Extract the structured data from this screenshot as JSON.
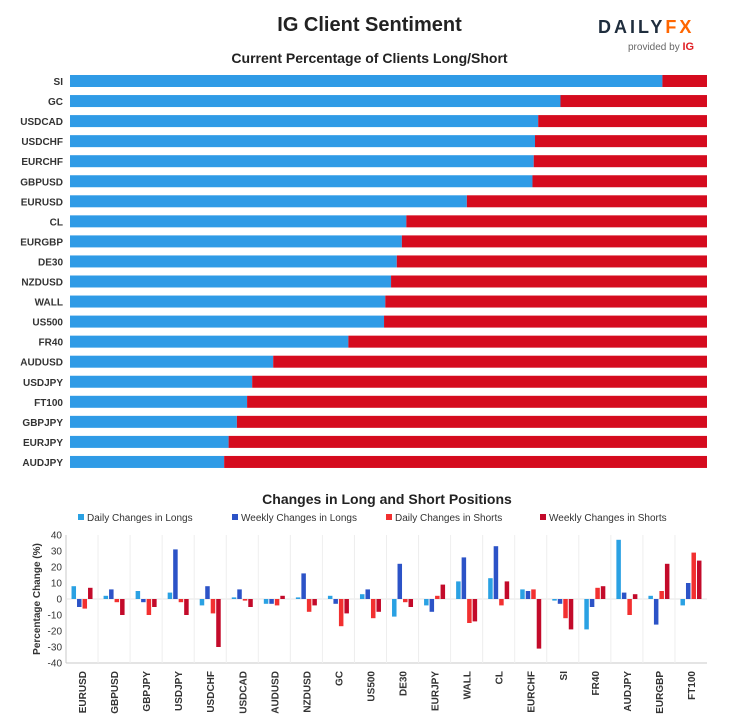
{
  "header": {
    "title": "IG Client Sentiment",
    "logo_primary": "DAILY",
    "logo_accent": "FX",
    "logo_caption": "provided by",
    "logo_badge": "IG"
  },
  "colors": {
    "long": "#2f9be6",
    "short": "#d50b1e",
    "daily_longs": "#2aa1e3",
    "weekly_longs": "#2c53c7",
    "daily_shorts": "#f23030",
    "weekly_shorts": "#c30a2a"
  },
  "chart_data": [
    {
      "type": "bar",
      "orientation": "horizontal",
      "stacked": true,
      "title": "Current Percentage of Clients Long/Short",
      "categories": [
        "SI",
        "GC",
        "USDCAD",
        "USDCHF",
        "EURCHF",
        "GBPUSD",
        "EURUSD",
        "CL",
        "EURGBP",
        "DE30",
        "NZDUSD",
        "WALL",
        "US500",
        "FR40",
        "AUDUSD",
        "USDJPY",
        "FT100",
        "GBPJPY",
        "EURJPY",
        "AUDJPY"
      ],
      "series": [
        {
          "values": [
            93.0,
            77.0,
            73.5,
            73.0,
            72.8,
            72.6,
            62.3,
            52.8,
            52.1,
            51.3,
            50.4,
            49.5,
            49.3,
            43.7,
            31.9,
            28.6,
            27.8,
            26.2,
            24.9,
            24.2
          ]
        },
        {
          "values": [
            7.0,
            23.0,
            26.5,
            27.0,
            27.2,
            27.4,
            37.7,
            47.2,
            47.9,
            48.7,
            49.6,
            50.5,
            50.7,
            56.3,
            68.1,
            71.4,
            72.2,
            73.8,
            75.1,
            75.8
          ]
        }
      ],
      "xlim": [
        0,
        100
      ]
    },
    {
      "type": "bar",
      "title": "Changes in Long and Short Positions",
      "ylabel": "Percentage Change (%)",
      "ylim": [
        -40,
        40
      ],
      "yticks": [
        40,
        30,
        20,
        10,
        0,
        -10,
        -20,
        -30,
        -40
      ],
      "grid": false,
      "legend_position": "top",
      "categories": [
        "EURUSD",
        "GBPUSD",
        "GBPJPY",
        "USDJPY",
        "USDCHF",
        "USDCAD",
        "AUDUSD",
        "NZDUSD",
        "GC",
        "US500",
        "DE30",
        "EURJPY",
        "WALL",
        "CL",
        "EURCHF",
        "SI",
        "FR40",
        "AUDJPY",
        "EURGBP",
        "FT100"
      ],
      "series": [
        {
          "name": "Daily Changes in Longs",
          "values": [
            8,
            2,
            5,
            4,
            -4,
            1,
            -3,
            1,
            2,
            3,
            -11,
            -4,
            11,
            13,
            6,
            -1,
            -19,
            37,
            2,
            -4
          ]
        },
        {
          "name": "Weekly Changes in Longs",
          "values": [
            -5,
            6,
            -2,
            31,
            8,
            6,
            -3,
            16,
            -3,
            6,
            22,
            -8,
            26,
            33,
            5,
            -3,
            -5,
            4,
            -16,
            10
          ]
        },
        {
          "name": "Daily Changes in Shorts",
          "values": [
            -6,
            -2,
            -10,
            -2,
            -9,
            -1,
            -4,
            -8,
            -17,
            -12,
            -2,
            2,
            -15,
            -4,
            6,
            -12,
            7,
            -10,
            5,
            29
          ]
        },
        {
          "name": "Weekly Changes in Shorts",
          "values": [
            7,
            -10,
            -5,
            -10,
            -30,
            -5,
            2,
            -4,
            -9,
            -8,
            -5,
            9,
            -14,
            11,
            -31,
            -19,
            8,
            3,
            22,
            24
          ]
        }
      ]
    }
  ]
}
